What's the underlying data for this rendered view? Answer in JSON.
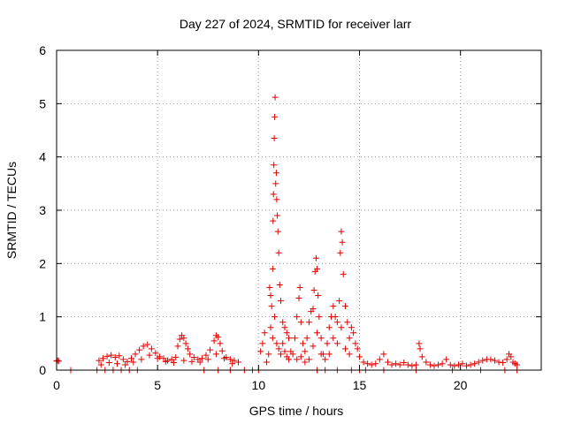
{
  "chart_data": {
    "type": "scatter",
    "title": "Day 227 of 2024, SRMTID for receiver larr",
    "xlabel": "GPS time / hours",
    "ylabel": "SRMTID / TECUs",
    "xlim": [
      0,
      24
    ],
    "ylim": [
      0,
      6
    ],
    "xticks": [
      0,
      5,
      10,
      15,
      20
    ],
    "yticks": [
      0,
      1,
      2,
      3,
      4,
      5,
      6
    ],
    "xtick_labels": [
      "0",
      "5",
      "10",
      "15",
      "20"
    ],
    "ytick_labels": [
      "0",
      "1",
      "2",
      "3",
      "4",
      "5",
      "6"
    ],
    "grid": true,
    "marker": "plus",
    "color": "#e00000",
    "series": [
      {
        "name": "SRMTID",
        "segments": [
          {
            "x": [
              0.0,
              0.05,
              0.1
            ],
            "y": [
              0.17,
              0.18,
              0.17
            ]
          },
          {
            "x": [
              0.7
            ],
            "y": [
              0.0
            ]
          },
          {
            "x": [
              2.1,
              2.3,
              2.5,
              2.7,
              2.9,
              3.1,
              3.3,
              3.5,
              3.7,
              3.9,
              4.1,
              4.3,
              4.5,
              4.7,
              4.9,
              5.1,
              5.3,
              5.5,
              5.7,
              5.9
            ],
            "y": [
              0.18,
              0.22,
              0.26,
              0.28,
              0.24,
              0.27,
              0.2,
              0.16,
              0.22,
              0.3,
              0.38,
              0.45,
              0.48,
              0.4,
              0.32,
              0.25,
              0.22,
              0.18,
              0.2,
              0.24
            ]
          },
          {
            "x": [
              2.2,
              2.6,
              3.0,
              3.4,
              3.8,
              4.2,
              4.6,
              5.0,
              5.4,
              5.8
            ],
            "y": [
              0.1,
              0.14,
              0.12,
              0.1,
              0.15,
              0.2,
              0.28,
              0.22,
              0.16,
              0.14
            ]
          },
          {
            "x": [
              2.0,
              2.4,
              2.8,
              3.2,
              3.6,
              4.0
            ],
            "y": [
              0.0,
              0.0,
              0.0,
              0.0,
              0.0,
              0.0
            ]
          },
          {
            "x": [
              6.0,
              6.1,
              6.2,
              6.3,
              6.4,
              6.5,
              6.6,
              6.8,
              7.0,
              7.2,
              7.4,
              7.6,
              7.8,
              7.9,
              8.0,
              8.1,
              8.2,
              8.4,
              8.6,
              8.8,
              9.0
            ],
            "y": [
              0.45,
              0.58,
              0.65,
              0.6,
              0.5,
              0.4,
              0.3,
              0.24,
              0.2,
              0.22,
              0.28,
              0.38,
              0.55,
              0.65,
              0.62,
              0.5,
              0.36,
              0.24,
              0.2,
              0.18,
              0.15
            ]
          },
          {
            "x": [
              6.3,
              6.7,
              7.1,
              7.5,
              7.9,
              8.3,
              8.7
            ],
            "y": [
              0.18,
              0.16,
              0.15,
              0.2,
              0.3,
              0.22,
              0.12
            ]
          },
          {
            "x": [
              7.3,
              8.0,
              8.6,
              9.3,
              9.7,
              10.0
            ],
            "y": [
              0.0,
              0.0,
              0.0,
              0.0,
              0.0,
              0.0
            ]
          },
          {
            "x": [
              10.1,
              10.2,
              10.3,
              10.4,
              10.5,
              10.55,
              10.6,
              10.65,
              10.7,
              10.72,
              10.74,
              10.76,
              10.78,
              10.8,
              10.82,
              10.85,
              10.88,
              10.9,
              10.93,
              10.96,
              11.0,
              11.05,
              11.1,
              11.2,
              11.3,
              11.4,
              11.5,
              11.6
            ],
            "y": [
              0.35,
              0.5,
              0.7,
              0.15,
              0.3,
              1.55,
              1.4,
              1.2,
              1.9,
              2.8,
              3.3,
              3.85,
              4.35,
              4.75,
              5.12,
              3.5,
              3.7,
              3.2,
              2.9,
              2.6,
              2.2,
              1.6,
              1.3,
              0.9,
              0.8,
              0.7,
              0.6,
              0.35
            ]
          },
          {
            "x": [
              10.6,
              10.7,
              10.8,
              10.9,
              11.0,
              11.1,
              11.2,
              11.3,
              11.4,
              11.5
            ],
            "y": [
              0.8,
              0.6,
              1.0,
              0.5,
              0.4,
              0.3,
              0.5,
              0.35,
              0.25,
              0.2
            ]
          },
          {
            "x": [
              11.7,
              11.8,
              11.9,
              12.0,
              12.05,
              12.1,
              12.2,
              12.3,
              12.4,
              12.5,
              12.6,
              12.7,
              12.75,
              12.8,
              12.85,
              12.9,
              12.95,
              13.0,
              13.1,
              13.2,
              13.3
            ],
            "y": [
              0.3,
              0.6,
              1.0,
              1.35,
              1.55,
              0.9,
              0.5,
              0.35,
              0.6,
              0.9,
              1.1,
              1.15,
              1.5,
              1.85,
              2.1,
              1.9,
              1.4,
              1.0,
              0.6,
              0.3,
              0.2
            ]
          },
          {
            "x": [
              11.9,
              12.1,
              12.3,
              12.5,
              12.7,
              12.9,
              13.1
            ],
            "y": [
              0.2,
              0.25,
              0.15,
              0.2,
              0.45,
              0.7,
              0.3
            ]
          },
          {
            "x": [
              13.4,
              13.5,
              13.6,
              13.7,
              13.8,
              13.9,
              14.0,
              14.05,
              14.1,
              14.15,
              14.2,
              14.3,
              14.4,
              14.5,
              14.6,
              14.7,
              14.8,
              14.9,
              15.0,
              15.2,
              15.4
            ],
            "y": [
              0.5,
              0.8,
              1.0,
              1.2,
              1.0,
              0.9,
              1.3,
              2.2,
              2.6,
              2.4,
              1.8,
              1.2,
              0.9,
              0.6,
              0.8,
              0.7,
              0.5,
              0.4,
              0.25,
              0.15,
              0.12
            ]
          },
          {
            "x": [
              13.5,
              13.7,
              13.9,
              14.1,
              14.3,
              14.5
            ],
            "y": [
              0.3,
              0.6,
              0.5,
              0.8,
              0.4,
              0.3
            ]
          },
          {
            "x": [
              12.9,
              13.3,
              13.9,
              14.6,
              15.0,
              15.3
            ],
            "y": [
              0.0,
              0.0,
              0.0,
              0.0,
              0.0,
              0.0
            ]
          },
          {
            "x": [
              15.6,
              15.8,
              16.0,
              16.2,
              16.4,
              16.6,
              16.8,
              17.0,
              17.2,
              17.4,
              17.6,
              17.8,
              17.95,
              18.0,
              18.1,
              18.3,
              18.5,
              18.7,
              18.9,
              19.1,
              19.3,
              19.5,
              19.7,
              19.9,
              20.1
            ],
            "y": [
              0.1,
              0.12,
              0.2,
              0.3,
              0.15,
              0.1,
              0.12,
              0.1,
              0.14,
              0.1,
              0.08,
              0.1,
              0.5,
              0.4,
              0.25,
              0.15,
              0.1,
              0.08,
              0.1,
              0.12,
              0.2,
              0.1,
              0.08,
              0.1,
              0.12
            ]
          },
          {
            "x": [
              20.3,
              20.5,
              20.7,
              20.9,
              21.1,
              21.3,
              21.5,
              21.7,
              21.9,
              22.1,
              22.3,
              22.4,
              22.5,
              22.6,
              22.7,
              22.8
            ],
            "y": [
              0.08,
              0.1,
              0.12,
              0.15,
              0.18,
              0.2,
              0.2,
              0.18,
              0.15,
              0.14,
              0.2,
              0.3,
              0.25,
              0.15,
              0.12,
              0.1
            ]
          },
          {
            "x": [
              16.2,
              17.8,
              19.6,
              21.0,
              22.2,
              22.8
            ],
            "y": [
              0.0,
              0.0,
              0.0,
              0.0,
              0.0,
              0.0
            ]
          }
        ]
      }
    ]
  }
}
